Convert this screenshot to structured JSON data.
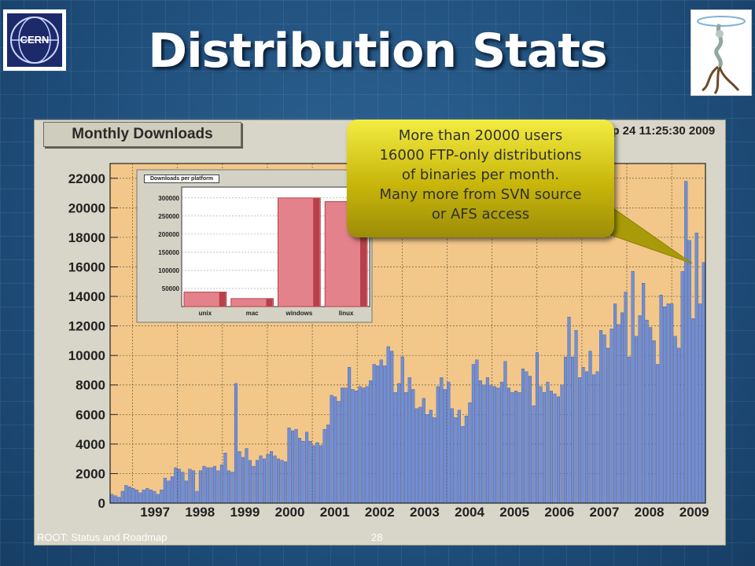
{
  "slide": {
    "title": "Distribution Stats",
    "footer_left": "ROOT: Status and Roadmap",
    "page_number": "28"
  },
  "chart_header": {
    "title": "Monthly Downloads",
    "date_stamp": "ep 24 11:25:30 2009"
  },
  "callout": {
    "lines": [
      "More than 20000 users",
      "16000 FTP-only distributions",
      "of binaries per month.",
      "Many more from SVN source",
      "or AFS access"
    ]
  },
  "colors": {
    "plot_bg": "#f2c789",
    "bar": "#6f8fd8",
    "bar_edge": "#2a3f8a",
    "inset_bar": "#e3828a",
    "inset_edge": "#b8404a",
    "callout": "#e7dc2a"
  },
  "chart_data": [
    {
      "type": "bar",
      "title": "Monthly Downloads",
      "xlabel": "",
      "ylabel": "",
      "ylim": [
        0,
        23000
      ],
      "y_ticks": [
        "0",
        "2000",
        "4000",
        "6000",
        "8000",
        "10000",
        "12000",
        "14000",
        "16000",
        "18000",
        "20000",
        "22000"
      ],
      "x_tick_labels": [
        "1997",
        "1998",
        "1999",
        "2000",
        "2001",
        "2002",
        "2003",
        "2004",
        "2005",
        "2006",
        "2007",
        "2008",
        "2009"
      ],
      "grid": true,
      "x_start_year": 1996.5,
      "x_end_year": 2009.75,
      "values": [
        600,
        500,
        400,
        800,
        1200,
        1100,
        1000,
        900,
        700,
        900,
        1000,
        900,
        800,
        600,
        900,
        1700,
        1500,
        1800,
        2400,
        2300,
        2100,
        1500,
        2300,
        2200,
        800,
        2200,
        2500,
        2400,
        2400,
        2500,
        2200,
        2600,
        3400,
        2200,
        2100,
        8100,
        3500,
        3100,
        3700,
        2900,
        2500,
        2900,
        3200,
        3000,
        3300,
        3500,
        3200,
        3000,
        2900,
        2800,
        5100,
        4900,
        5000,
        4400,
        4200,
        4800,
        4200,
        3900,
        4100,
        3900,
        5000,
        5300,
        7300,
        7200,
        6900,
        7800,
        7800,
        9200,
        7700,
        7600,
        7900,
        7800,
        7900,
        8300,
        9400,
        9300,
        9700,
        9300,
        10600,
        10300,
        7500,
        8100,
        9900,
        7500,
        8500,
        7700,
        6400,
        6500,
        7100,
        6000,
        6300,
        5800,
        7900,
        8500,
        7700,
        8200,
        6400,
        5800,
        6300,
        5200,
        5900,
        6800,
        9400,
        9700,
        8300,
        8000,
        8500,
        8000,
        7900,
        7800,
        8200,
        9600,
        7800,
        7500,
        7600,
        7500,
        9100,
        8900,
        8600,
        6600,
        10200,
        7900,
        7500,
        8200,
        7600,
        7400,
        7200,
        8000,
        9900,
        12600,
        9900,
        11700,
        8500,
        9200,
        8900,
        10300,
        8700,
        8900,
        11700,
        11400,
        10500,
        11800,
        13500,
        12100,
        12900,
        14300,
        9900,
        15700,
        11300,
        12700,
        14900,
        12400,
        11900,
        11000,
        9400,
        14100,
        13300,
        13500,
        13500,
        11300,
        10500,
        15700,
        21800,
        17800,
        12500,
        18300,
        13500,
        16300
      ]
    },
    {
      "type": "bar",
      "title": "Downloads per platform",
      "categories": [
        "unix",
        "mac",
        "windows",
        "linux"
      ],
      "values": [
        40000,
        22000,
        300000,
        290000
      ],
      "ylim": [
        0,
        330000
      ],
      "y_ticks": [
        "50000",
        "100000",
        "150000",
        "200000",
        "250000",
        "300000"
      ]
    }
  ]
}
